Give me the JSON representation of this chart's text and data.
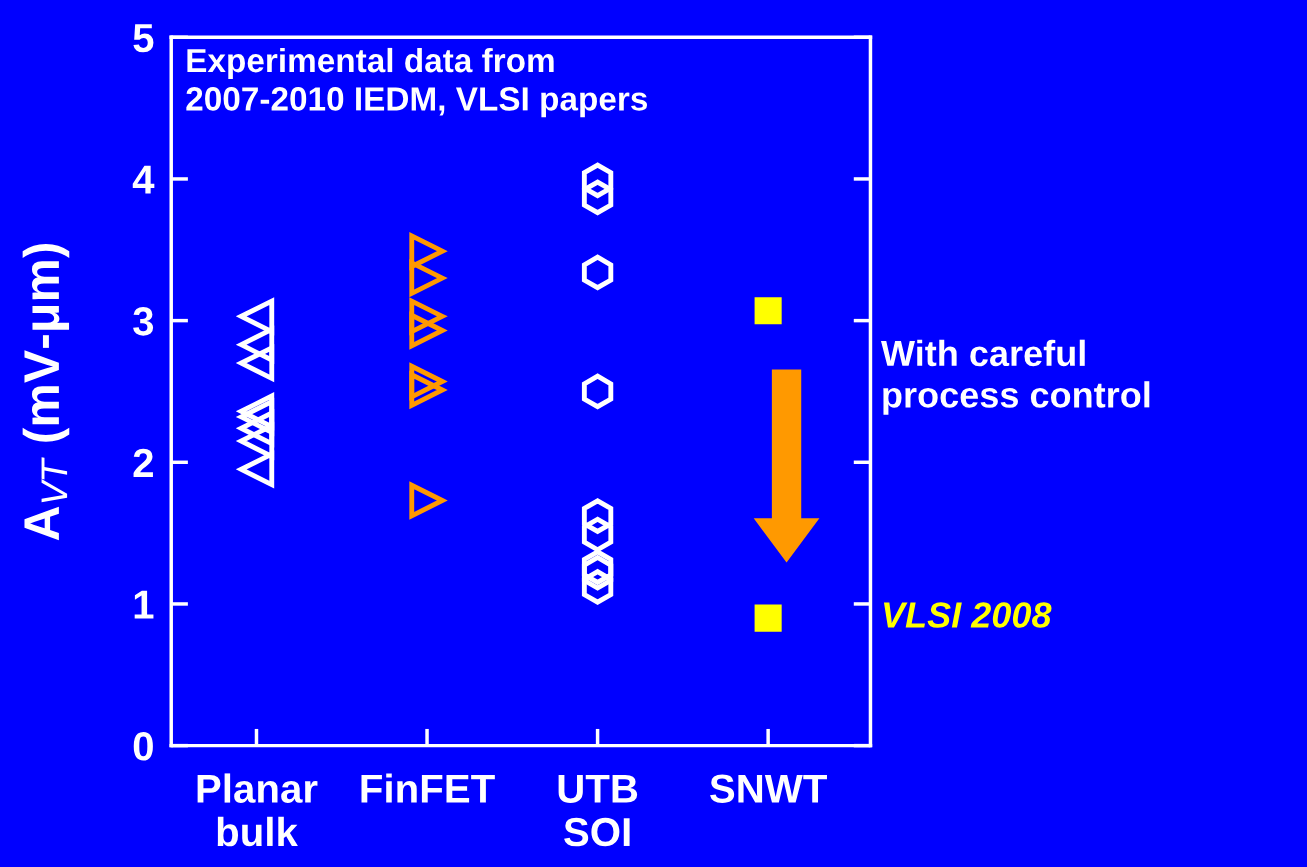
{
  "chart_data": {
    "type": "scatter",
    "ylabel": "A$_{VT}$ (mV-μm)",
    "categories": [
      "Planar\nbulk",
      "FinFET",
      "UTB\nSOI",
      "SNWT"
    ],
    "series": [
      {
        "x": [
          "Planar\nbulk",
          "Planar\nbulk",
          "Planar\nbulk",
          "Planar\nbulk",
          "Planar\nbulk",
          "Planar\nbulk",
          "Planar\nbulk",
          "Planar\nbulk"
        ],
        "values": [
          3.03,
          2.83,
          2.7,
          2.36,
          2.32,
          2.24,
          2.15,
          1.95
        ],
        "color": "#ffffff",
        "marker": "triangle-left"
      },
      {
        "x": [
          "FinFET",
          "FinFET",
          "FinFET",
          "FinFET",
          "FinFET",
          "FinFET",
          "FinFET"
        ],
        "values": [
          3.49,
          3.3,
          3.03,
          2.93,
          2.57,
          2.51,
          1.73
        ],
        "color": "#ff9900",
        "marker": "triangle-right"
      },
      {
        "x": [
          "UTB\nSOI",
          "UTB\nSOI",
          "UTB\nSOI",
          "UTB\nSOI",
          "UTB\nSOI",
          "UTB\nSOI",
          "UTB\nSOI",
          "UTB\nSOI",
          "UTB\nSOI"
        ],
        "values": [
          3.99,
          3.87,
          3.34,
          2.5,
          1.62,
          1.49,
          1.26,
          1.22,
          1.12
        ],
        "color": "#ffffff"
      },
      {
        "x": [
          "SNWT",
          "SNWT"
        ],
        "values": [
          3.07,
          0.9
        ],
        "color": "#ffff00",
        "marker": "square"
      }
    ],
    "ylim": [
      0,
      5
    ],
    "yticks": [
      0,
      1,
      2,
      3,
      4,
      5
    ],
    "annotations": [
      "Experimental data from\n2007-2010 IEDM, VLSI papers",
      "With careful\nprocess control",
      "VLSI 2008"
    ],
    "grid": false,
    "legend": false
  }
}
